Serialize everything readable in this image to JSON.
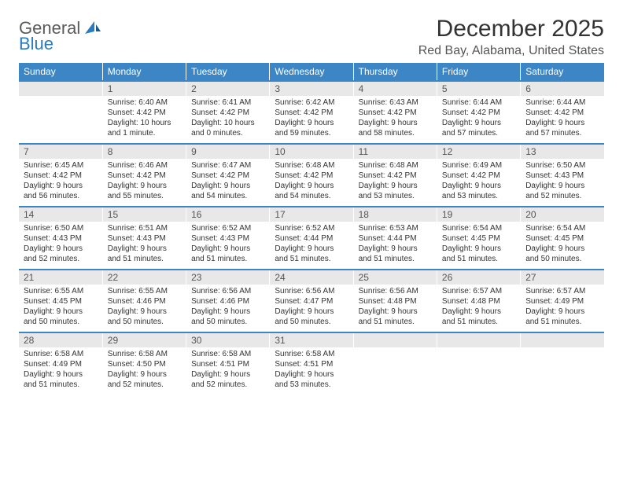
{
  "logo": {
    "word1": "General",
    "word2": "Blue"
  },
  "title": "December 2025",
  "location": "Red Bay, Alabama, United States",
  "header_bg": "#3d86c6",
  "daynum_bg": "#e8e8e8",
  "days_of_week": [
    "Sunday",
    "Monday",
    "Tuesday",
    "Wednesday",
    "Thursday",
    "Friday",
    "Saturday"
  ],
  "weeks": [
    [
      {
        "n": "",
        "sr": "",
        "ss": "",
        "dl": ""
      },
      {
        "n": "1",
        "sr": "Sunrise: 6:40 AM",
        "ss": "Sunset: 4:42 PM",
        "dl": "Daylight: 10 hours and 1 minute."
      },
      {
        "n": "2",
        "sr": "Sunrise: 6:41 AM",
        "ss": "Sunset: 4:42 PM",
        "dl": "Daylight: 10 hours and 0 minutes."
      },
      {
        "n": "3",
        "sr": "Sunrise: 6:42 AM",
        "ss": "Sunset: 4:42 PM",
        "dl": "Daylight: 9 hours and 59 minutes."
      },
      {
        "n": "4",
        "sr": "Sunrise: 6:43 AM",
        "ss": "Sunset: 4:42 PM",
        "dl": "Daylight: 9 hours and 58 minutes."
      },
      {
        "n": "5",
        "sr": "Sunrise: 6:44 AM",
        "ss": "Sunset: 4:42 PM",
        "dl": "Daylight: 9 hours and 57 minutes."
      },
      {
        "n": "6",
        "sr": "Sunrise: 6:44 AM",
        "ss": "Sunset: 4:42 PM",
        "dl": "Daylight: 9 hours and 57 minutes."
      }
    ],
    [
      {
        "n": "7",
        "sr": "Sunrise: 6:45 AM",
        "ss": "Sunset: 4:42 PM",
        "dl": "Daylight: 9 hours and 56 minutes."
      },
      {
        "n": "8",
        "sr": "Sunrise: 6:46 AM",
        "ss": "Sunset: 4:42 PM",
        "dl": "Daylight: 9 hours and 55 minutes."
      },
      {
        "n": "9",
        "sr": "Sunrise: 6:47 AM",
        "ss": "Sunset: 4:42 PM",
        "dl": "Daylight: 9 hours and 54 minutes."
      },
      {
        "n": "10",
        "sr": "Sunrise: 6:48 AM",
        "ss": "Sunset: 4:42 PM",
        "dl": "Daylight: 9 hours and 54 minutes."
      },
      {
        "n": "11",
        "sr": "Sunrise: 6:48 AM",
        "ss": "Sunset: 4:42 PM",
        "dl": "Daylight: 9 hours and 53 minutes."
      },
      {
        "n": "12",
        "sr": "Sunrise: 6:49 AM",
        "ss": "Sunset: 4:42 PM",
        "dl": "Daylight: 9 hours and 53 minutes."
      },
      {
        "n": "13",
        "sr": "Sunrise: 6:50 AM",
        "ss": "Sunset: 4:43 PM",
        "dl": "Daylight: 9 hours and 52 minutes."
      }
    ],
    [
      {
        "n": "14",
        "sr": "Sunrise: 6:50 AM",
        "ss": "Sunset: 4:43 PM",
        "dl": "Daylight: 9 hours and 52 minutes."
      },
      {
        "n": "15",
        "sr": "Sunrise: 6:51 AM",
        "ss": "Sunset: 4:43 PM",
        "dl": "Daylight: 9 hours and 51 minutes."
      },
      {
        "n": "16",
        "sr": "Sunrise: 6:52 AM",
        "ss": "Sunset: 4:43 PM",
        "dl": "Daylight: 9 hours and 51 minutes."
      },
      {
        "n": "17",
        "sr": "Sunrise: 6:52 AM",
        "ss": "Sunset: 4:44 PM",
        "dl": "Daylight: 9 hours and 51 minutes."
      },
      {
        "n": "18",
        "sr": "Sunrise: 6:53 AM",
        "ss": "Sunset: 4:44 PM",
        "dl": "Daylight: 9 hours and 51 minutes."
      },
      {
        "n": "19",
        "sr": "Sunrise: 6:54 AM",
        "ss": "Sunset: 4:45 PM",
        "dl": "Daylight: 9 hours and 51 minutes."
      },
      {
        "n": "20",
        "sr": "Sunrise: 6:54 AM",
        "ss": "Sunset: 4:45 PM",
        "dl": "Daylight: 9 hours and 50 minutes."
      }
    ],
    [
      {
        "n": "21",
        "sr": "Sunrise: 6:55 AM",
        "ss": "Sunset: 4:45 PM",
        "dl": "Daylight: 9 hours and 50 minutes."
      },
      {
        "n": "22",
        "sr": "Sunrise: 6:55 AM",
        "ss": "Sunset: 4:46 PM",
        "dl": "Daylight: 9 hours and 50 minutes."
      },
      {
        "n": "23",
        "sr": "Sunrise: 6:56 AM",
        "ss": "Sunset: 4:46 PM",
        "dl": "Daylight: 9 hours and 50 minutes."
      },
      {
        "n": "24",
        "sr": "Sunrise: 6:56 AM",
        "ss": "Sunset: 4:47 PM",
        "dl": "Daylight: 9 hours and 50 minutes."
      },
      {
        "n": "25",
        "sr": "Sunrise: 6:56 AM",
        "ss": "Sunset: 4:48 PM",
        "dl": "Daylight: 9 hours and 51 minutes."
      },
      {
        "n": "26",
        "sr": "Sunrise: 6:57 AM",
        "ss": "Sunset: 4:48 PM",
        "dl": "Daylight: 9 hours and 51 minutes."
      },
      {
        "n": "27",
        "sr": "Sunrise: 6:57 AM",
        "ss": "Sunset: 4:49 PM",
        "dl": "Daylight: 9 hours and 51 minutes."
      }
    ],
    [
      {
        "n": "28",
        "sr": "Sunrise: 6:58 AM",
        "ss": "Sunset: 4:49 PM",
        "dl": "Daylight: 9 hours and 51 minutes."
      },
      {
        "n": "29",
        "sr": "Sunrise: 6:58 AM",
        "ss": "Sunset: 4:50 PM",
        "dl": "Daylight: 9 hours and 52 minutes."
      },
      {
        "n": "30",
        "sr": "Sunrise: 6:58 AM",
        "ss": "Sunset: 4:51 PM",
        "dl": "Daylight: 9 hours and 52 minutes."
      },
      {
        "n": "31",
        "sr": "Sunrise: 6:58 AM",
        "ss": "Sunset: 4:51 PM",
        "dl": "Daylight: 9 hours and 53 minutes."
      },
      {
        "n": "",
        "sr": "",
        "ss": "",
        "dl": ""
      },
      {
        "n": "",
        "sr": "",
        "ss": "",
        "dl": ""
      },
      {
        "n": "",
        "sr": "",
        "ss": "",
        "dl": ""
      }
    ]
  ]
}
